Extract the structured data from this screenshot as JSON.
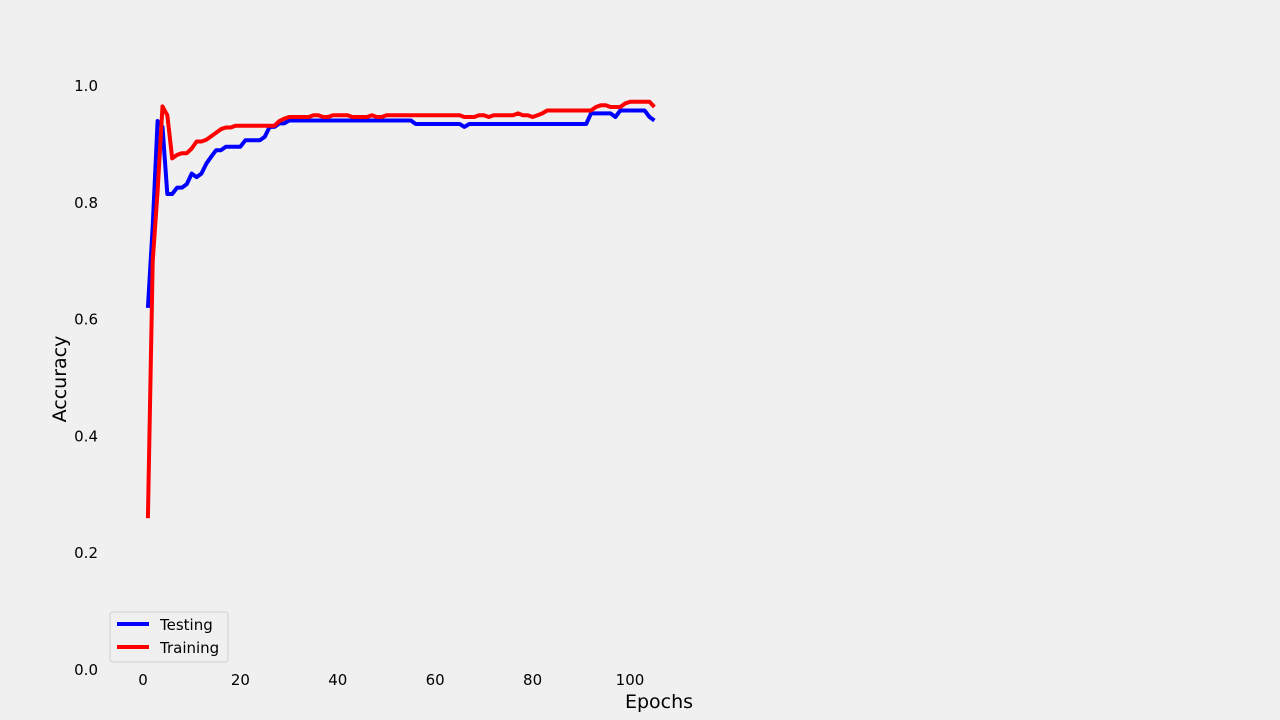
{
  "chart_data": {
    "type": "line",
    "xlabel": "Epochs",
    "ylabel": "Accuracy",
    "xlim": [
      -4,
      117
    ],
    "ylim": [
      0,
      1.1
    ],
    "x_ticks": [
      0,
      20,
      40,
      60,
      80,
      100
    ],
    "y_ticks": [
      0.0,
      0.2,
      0.4,
      0.6,
      0.8,
      1.0
    ],
    "x_tick_labels": [
      "0",
      "20",
      "40",
      "60",
      "80",
      "100"
    ],
    "y_tick_labels": [
      "0.0",
      "0.2",
      "0.4",
      "0.6",
      "0.8",
      "1.0"
    ],
    "grid": false,
    "legend_position": "lower-left",
    "series": [
      {
        "name": "Testing",
        "color": "#0000ff",
        "points": [
          [
            1,
            0.62
          ],
          [
            2,
            0.76
          ],
          [
            3,
            0.94
          ],
          [
            4,
            0.93
          ],
          [
            5,
            0.815
          ],
          [
            6,
            0.815
          ],
          [
            7,
            0.826
          ],
          [
            8,
            0.826
          ],
          [
            9,
            0.832
          ],
          [
            10,
            0.85
          ],
          [
            11,
            0.844
          ],
          [
            12,
            0.85
          ],
          [
            13,
            0.867
          ],
          [
            14,
            0.879
          ],
          [
            15,
            0.89
          ],
          [
            16,
            0.89
          ],
          [
            17,
            0.896
          ],
          [
            18,
            0.896
          ],
          [
            20,
            0.896
          ],
          [
            21,
            0.907
          ],
          [
            22,
            0.907
          ],
          [
            23,
            0.907
          ],
          [
            24,
            0.907
          ],
          [
            25,
            0.913
          ],
          [
            26,
            0.93
          ],
          [
            27,
            0.93
          ],
          [
            28,
            0.936
          ],
          [
            29,
            0.936
          ],
          [
            30,
            0.941
          ],
          [
            55,
            0.941
          ],
          [
            56,
            0.935
          ],
          [
            65,
            0.935
          ],
          [
            66,
            0.93
          ],
          [
            67,
            0.935
          ],
          [
            91,
            0.935
          ],
          [
            92,
            0.953
          ],
          [
            96,
            0.953
          ],
          [
            97,
            0.947
          ],
          [
            98,
            0.958
          ],
          [
            103,
            0.958
          ],
          [
            104,
            0.947
          ],
          [
            105,
            0.941
          ]
        ]
      },
      {
        "name": "Training",
        "color": "#ff0000",
        "points": [
          [
            1,
            0.26
          ],
          [
            2,
            0.7
          ],
          [
            3,
            0.82
          ],
          [
            4,
            0.965
          ],
          [
            5,
            0.95
          ],
          [
            6,
            0.876
          ],
          [
            7,
            0.882
          ],
          [
            8,
            0.885
          ],
          [
            9,
            0.885
          ],
          [
            10,
            0.893
          ],
          [
            11,
            0.905
          ],
          [
            12,
            0.905
          ],
          [
            13,
            0.908
          ],
          [
            14,
            0.914
          ],
          [
            15,
            0.92
          ],
          [
            16,
            0.926
          ],
          [
            17,
            0.929
          ],
          [
            18,
            0.929
          ],
          [
            19,
            0.932
          ],
          [
            27,
            0.932
          ],
          [
            28,
            0.94
          ],
          [
            29,
            0.944
          ],
          [
            30,
            0.947
          ],
          [
            34,
            0.947
          ],
          [
            35,
            0.95
          ],
          [
            36,
            0.95
          ],
          [
            37,
            0.947
          ],
          [
            38,
            0.947
          ],
          [
            39,
            0.95
          ],
          [
            42,
            0.95
          ],
          [
            43,
            0.947
          ],
          [
            46,
            0.947
          ],
          [
            47,
            0.95
          ],
          [
            48,
            0.947
          ],
          [
            49,
            0.947
          ],
          [
            50,
            0.95
          ],
          [
            65,
            0.95
          ],
          [
            66,
            0.947
          ],
          [
            68,
            0.947
          ],
          [
            69,
            0.95
          ],
          [
            70,
            0.95
          ],
          [
            71,
            0.947
          ],
          [
            72,
            0.95
          ],
          [
            76,
            0.95
          ],
          [
            77,
            0.953
          ],
          [
            78,
            0.95
          ],
          [
            79,
            0.95
          ],
          [
            80,
            0.947
          ],
          [
            81,
            0.95
          ],
          [
            82,
            0.953
          ],
          [
            83,
            0.958
          ],
          [
            91,
            0.958
          ],
          [
            92,
            0.958
          ],
          [
            93,
            0.964
          ],
          [
            94,
            0.967
          ],
          [
            95,
            0.967
          ],
          [
            96,
            0.964
          ],
          [
            98,
            0.964
          ],
          [
            99,
            0.97
          ],
          [
            100,
            0.973
          ],
          [
            104,
            0.973
          ],
          [
            105,
            0.964
          ]
        ]
      }
    ]
  }
}
